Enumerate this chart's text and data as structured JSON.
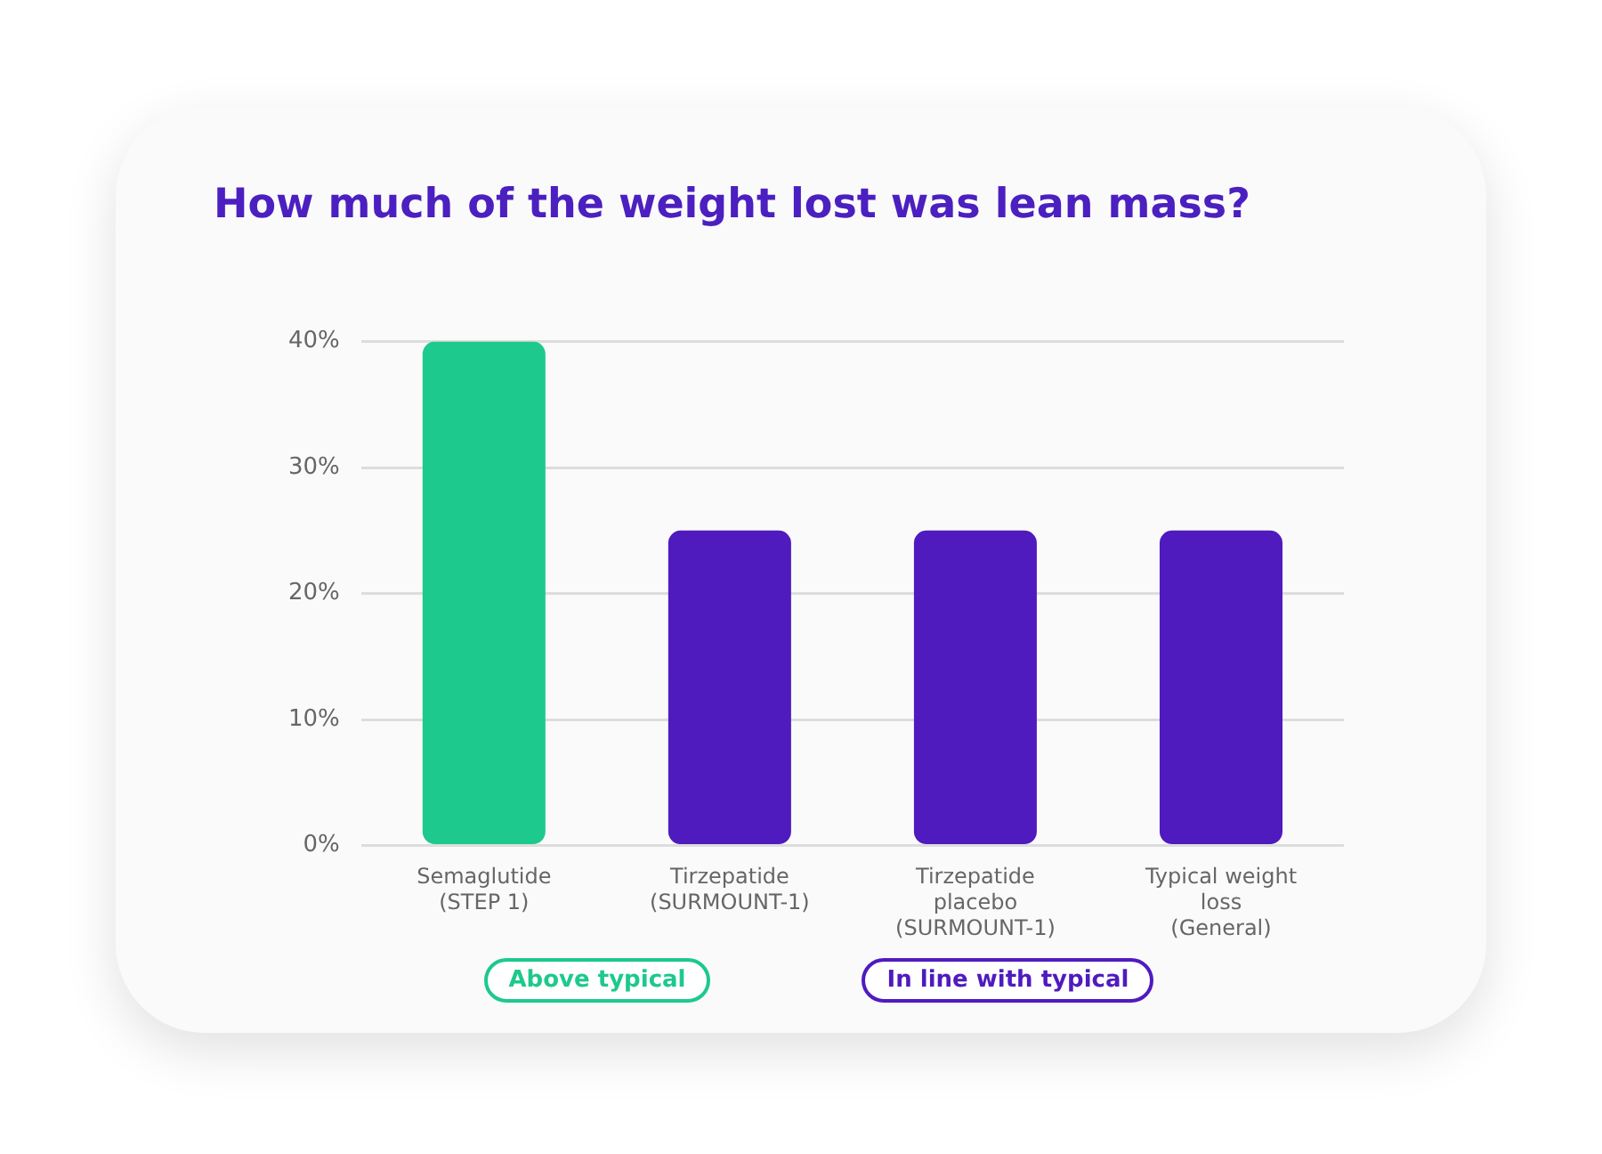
{
  "chart_data": {
    "type": "bar",
    "title": "How much of the weight lost was lean mass?",
    "categories": [
      "Semaglutide\n(STEP 1)",
      "Tirzepatide\n(SURMOUNT-1)",
      "Tirzepatide\nplacebo\n(SURMOUNT-1)",
      "Typical weight\nloss\n(General)"
    ],
    "series": [
      {
        "name": "Above typical",
        "color": "#1dc98c",
        "values": [
          40,
          null,
          null,
          null
        ]
      },
      {
        "name": "In line with typical",
        "color": "#4f1bbf",
        "values": [
          null,
          25,
          25,
          25
        ]
      }
    ],
    "ylim": [
      0,
      40
    ],
    "yticks": [
      {
        "value": 0,
        "label": "0%"
      },
      {
        "value": 10,
        "label": "10%"
      },
      {
        "value": 20,
        "label": "20%"
      },
      {
        "value": 30,
        "label": "30%"
      },
      {
        "value": 40,
        "label": "40%"
      }
    ],
    "grid": "y",
    "legend": "bottom"
  }
}
